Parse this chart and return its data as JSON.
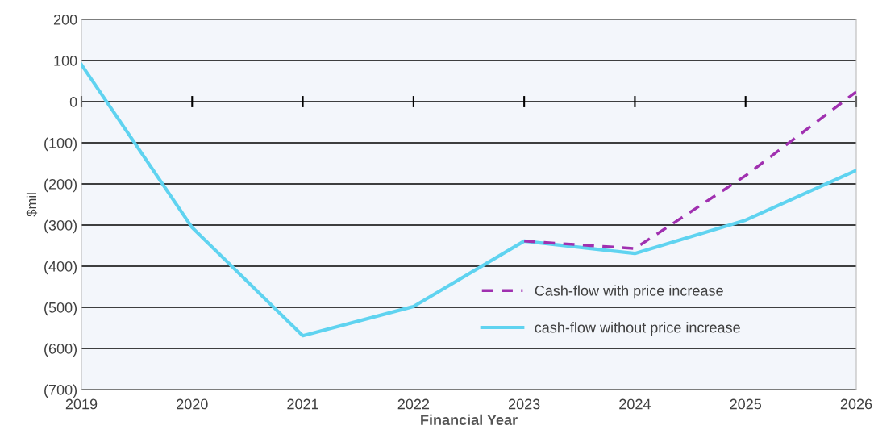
{
  "chart_data": {
    "type": "line",
    "xlabel": "Financial Year",
    "ylabel": "$mil",
    "x": [
      2019,
      2020,
      2021,
      2022,
      2023,
      2024,
      2025,
      2026
    ],
    "series": [
      {
        "name": "Cash-flow with price increase",
        "color": "#a030b0",
        "line_style": "dashed",
        "values": [
          null,
          null,
          null,
          null,
          -339,
          -357,
          -180,
          24
        ]
      },
      {
        "name": "cash-flow without price increase",
        "color": "#5fd3f0",
        "line_style": "solid",
        "values": [
          90,
          -306,
          -569,
          -498,
          -339,
          -369,
          -288,
          -167
        ]
      }
    ],
    "xlim": [
      2019,
      2026
    ],
    "xticks": [
      2019,
      2020,
      2021,
      2022,
      2023,
      2024,
      2025,
      2026
    ],
    "ylim": [
      -700,
      200
    ],
    "yticks": [
      200,
      100,
      0,
      {
        "value": -100,
        "label": "(100)"
      },
      {
        "value": -200,
        "label": "(200)"
      },
      {
        "value": -300,
        "label": "(300)"
      },
      {
        "value": -400,
        "label": "(400)"
      },
      {
        "value": -500,
        "label": "(500)"
      },
      {
        "value": -600,
        "label": "(600)"
      },
      {
        "value": -700,
        "label": "(700)"
      }
    ],
    "grid": "y",
    "legend": "right",
    "marker": "none"
  }
}
